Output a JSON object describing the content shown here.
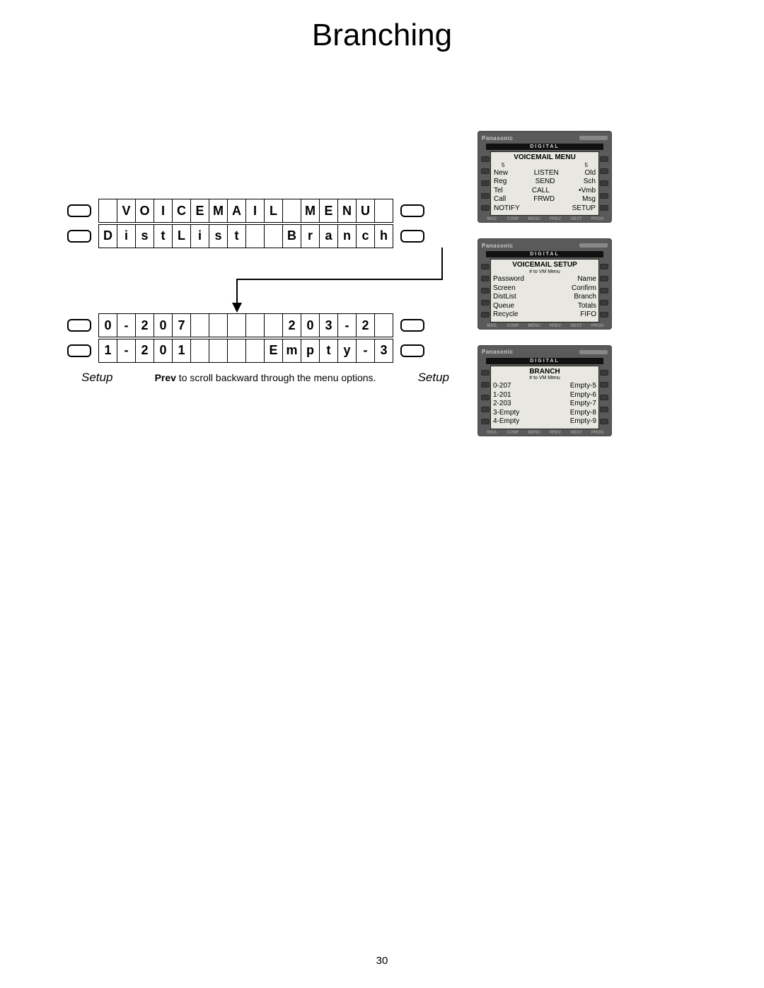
{
  "title": "Branching",
  "page_number": "30",
  "lcd1": {
    "row1": [
      "",
      "V",
      "O",
      "I",
      "C",
      "E",
      "M",
      "A",
      "I",
      "L",
      "",
      "M",
      "E",
      "N",
      "U",
      ""
    ],
    "row2": [
      "D",
      "i",
      "s",
      "t",
      "L",
      "i",
      "s",
      "t",
      "",
      "",
      "B",
      "r",
      "a",
      "n",
      "c",
      "h"
    ]
  },
  "lcd2": {
    "row1": [
      "0",
      "-",
      "2",
      "0",
      "7",
      "",
      "",
      "",
      "",
      "",
      "2",
      "0",
      "3",
      "-",
      "2",
      ""
    ],
    "row2": [
      "1",
      "-",
      "2",
      "0",
      "1",
      "",
      "",
      "",
      "",
      "E",
      "m",
      "p",
      "t",
      "y",
      "-",
      "3"
    ]
  },
  "setup_left": "Setup",
  "setup_right": "Setup",
  "hint_bold": "Prev",
  "hint_rest": " to scroll backward through the menu options.",
  "phone_brand": "Panasonic",
  "phone_digital": "DIGITAL",
  "softkeys": [
    "MSG",
    "CONF",
    "MENU",
    "PREV",
    "NEXT",
    "PROG"
  ],
  "phone1": {
    "title": "VOICEMAIL MENU",
    "subnums": [
      "5",
      "5"
    ],
    "rows": [
      [
        "New",
        "LISTEN",
        "Old"
      ],
      [
        "Reg",
        "SEND",
        "Sch"
      ],
      [
        "Tel",
        "CALL",
        "•Vmb"
      ],
      [
        "Call",
        "FRWD",
        "Msg"
      ],
      [
        "NOTIFY",
        "",
        "SETUP"
      ]
    ]
  },
  "phone2": {
    "title": "VOICEMAIL SETUP",
    "sub": "# to VM Menu",
    "rows": [
      [
        "Password",
        "Name"
      ],
      [
        "Screen",
        "Confirm"
      ],
      [
        "DistList",
        "Branch"
      ],
      [
        "Queue",
        "Totals"
      ],
      [
        "Recycle",
        "FIFO"
      ]
    ]
  },
  "phone3": {
    "title": "BRANCH",
    "sub": "# to VM Menu",
    "rows": [
      [
        "0-207",
        "Empty-5"
      ],
      [
        "1-201",
        "Empty-6"
      ],
      [
        "2-203",
        "Empty-7"
      ],
      [
        "3-Empty",
        "Empty-8"
      ],
      [
        "4-Empty",
        "Empty-9"
      ]
    ]
  },
  "colors": {
    "page_bg": "#ffffff",
    "text": "#000000",
    "phone_body": "#5a5a5a",
    "screen_bg": "#e8e8e0"
  }
}
